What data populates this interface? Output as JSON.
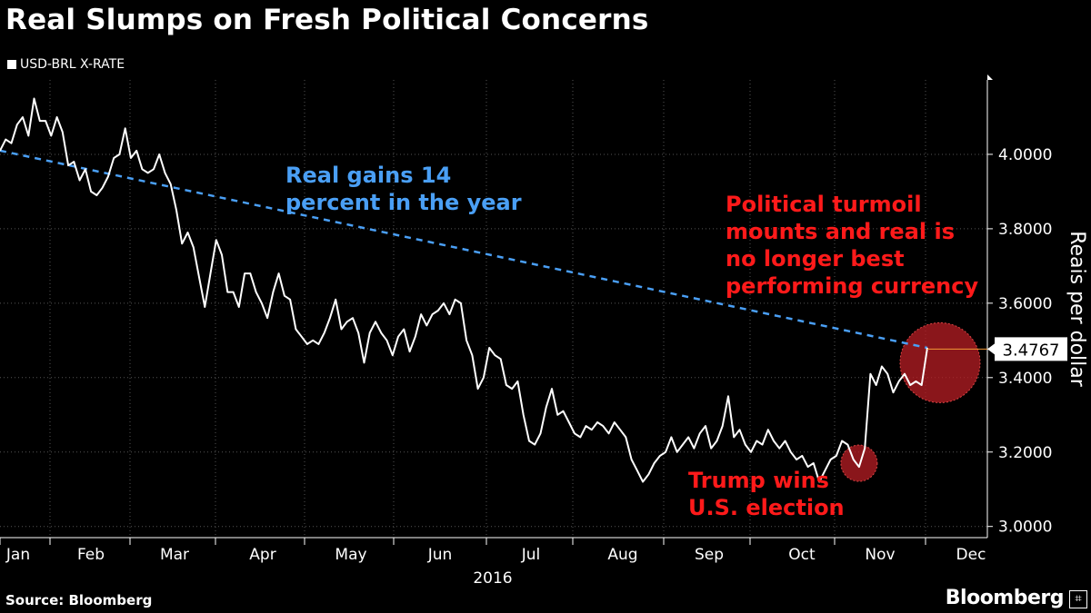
{
  "title": "Real Slumps on Fresh Political Concerns",
  "legend_label": "USD-BRL X-RATE",
  "source": "Source: Bloomberg",
  "brand": "Bloomberg",
  "brand_icon": "bloomberg-terminal-icon",
  "colors": {
    "background": "#000000",
    "line": "#ffffff",
    "trend": "#4a9ff5",
    "annotation_red": "#ff1a1a",
    "highlight": "#b81e24",
    "last_marker": "#f29a38"
  },
  "chart_data": {
    "type": "line",
    "title": "Real Slumps on Fresh Political Concerns",
    "ylabel": "Reais per dollar",
    "xlabel": "2016",
    "ylim": [
      2.97,
      4.2
    ],
    "y_ticks": [
      "4.0000",
      "3.8000",
      "3.6000",
      "3.4000",
      "3.2000",
      "3.0000"
    ],
    "x_tick_labels": [
      "Jan",
      "Feb",
      "Mar",
      "Apr",
      "May",
      "Jun",
      "Jul",
      "Aug",
      "Sep",
      "Oct",
      "Nov",
      "Dec"
    ],
    "x_year_label": "2016",
    "last_value_label": "3.4767",
    "series": [
      {
        "name": "USD-BRL X-RATE",
        "points": [
          [
            0,
            4.01
          ],
          [
            2,
            4.04
          ],
          [
            4,
            4.03
          ],
          [
            6,
            4.08
          ],
          [
            8,
            4.1
          ],
          [
            10,
            4.05
          ],
          [
            12,
            4.15
          ],
          [
            14,
            4.09
          ],
          [
            16,
            4.09
          ],
          [
            18,
            4.05
          ],
          [
            20,
            4.1
          ],
          [
            22,
            4.06
          ],
          [
            24,
            3.97
          ],
          [
            26,
            3.98
          ],
          [
            28,
            3.93
          ],
          [
            30,
            3.96
          ],
          [
            32,
            3.9
          ],
          [
            34,
            3.89
          ],
          [
            36,
            3.91
          ],
          [
            38,
            3.94
          ],
          [
            40,
            3.99
          ],
          [
            42,
            4.0
          ],
          [
            44,
            4.07
          ],
          [
            46,
            3.99
          ],
          [
            48,
            4.01
          ],
          [
            50,
            3.96
          ],
          [
            52,
            3.95
          ],
          [
            54,
            3.96
          ],
          [
            56,
            4.0
          ],
          [
            58,
            3.95
          ],
          [
            60,
            3.92
          ],
          [
            62,
            3.85
          ],
          [
            64,
            3.76
          ],
          [
            66,
            3.79
          ],
          [
            68,
            3.75
          ],
          [
            70,
            3.67
          ],
          [
            72,
            3.59
          ],
          [
            74,
            3.68
          ],
          [
            76,
            3.77
          ],
          [
            78,
            3.73
          ],
          [
            80,
            3.63
          ],
          [
            82,
            3.63
          ],
          [
            84,
            3.59
          ],
          [
            86,
            3.68
          ],
          [
            88,
            3.68
          ],
          [
            90,
            3.63
          ],
          [
            92,
            3.6
          ],
          [
            94,
            3.56
          ],
          [
            96,
            3.63
          ],
          [
            98,
            3.68
          ],
          [
            100,
            3.62
          ],
          [
            102,
            3.61
          ],
          [
            104,
            3.53
          ],
          [
            106,
            3.51
          ],
          [
            108,
            3.49
          ],
          [
            110,
            3.5
          ],
          [
            112,
            3.49
          ],
          [
            114,
            3.52
          ],
          [
            116,
            3.56
          ],
          [
            118,
            3.61
          ],
          [
            120,
            3.53
          ],
          [
            122,
            3.55
          ],
          [
            124,
            3.56
          ],
          [
            126,
            3.52
          ],
          [
            128,
            3.44
          ],
          [
            130,
            3.52
          ],
          [
            132,
            3.55
          ],
          [
            134,
            3.52
          ],
          [
            136,
            3.5
          ],
          [
            138,
            3.46
          ],
          [
            140,
            3.51
          ],
          [
            142,
            3.53
          ],
          [
            144,
            3.47
          ],
          [
            146,
            3.51
          ],
          [
            148,
            3.57
          ],
          [
            150,
            3.54
          ],
          [
            152,
            3.57
          ],
          [
            154,
            3.58
          ],
          [
            156,
            3.6
          ],
          [
            158,
            3.57
          ],
          [
            160,
            3.61
          ],
          [
            162,
            3.6
          ],
          [
            164,
            3.5
          ],
          [
            166,
            3.46
          ],
          [
            168,
            3.37
          ],
          [
            170,
            3.4
          ],
          [
            172,
            3.48
          ],
          [
            174,
            3.46
          ],
          [
            176,
            3.45
          ],
          [
            178,
            3.38
          ],
          [
            180,
            3.37
          ],
          [
            182,
            3.39
          ],
          [
            184,
            3.3
          ],
          [
            186,
            3.23
          ],
          [
            188,
            3.22
          ],
          [
            190,
            3.25
          ],
          [
            192,
            3.32
          ],
          [
            194,
            3.37
          ],
          [
            196,
            3.3
          ],
          [
            198,
            3.31
          ],
          [
            200,
            3.28
          ],
          [
            202,
            3.25
          ],
          [
            204,
            3.24
          ],
          [
            206,
            3.27
          ],
          [
            208,
            3.26
          ],
          [
            210,
            3.28
          ],
          [
            212,
            3.27
          ],
          [
            214,
            3.25
          ],
          [
            216,
            3.28
          ],
          [
            218,
            3.26
          ],
          [
            220,
            3.24
          ],
          [
            222,
            3.18
          ],
          [
            224,
            3.15
          ],
          [
            226,
            3.12
          ],
          [
            228,
            3.14
          ],
          [
            230,
            3.17
          ],
          [
            232,
            3.19
          ],
          [
            234,
            3.2
          ],
          [
            236,
            3.24
          ],
          [
            238,
            3.2
          ],
          [
            240,
            3.22
          ],
          [
            242,
            3.24
          ],
          [
            244,
            3.21
          ],
          [
            246,
            3.25
          ],
          [
            248,
            3.27
          ],
          [
            250,
            3.21
          ],
          [
            252,
            3.23
          ],
          [
            254,
            3.27
          ],
          [
            256,
            3.35
          ],
          [
            258,
            3.24
          ],
          [
            260,
            3.26
          ],
          [
            262,
            3.22
          ],
          [
            264,
            3.2
          ],
          [
            266,
            3.23
          ],
          [
            268,
            3.22
          ],
          [
            270,
            3.26
          ],
          [
            272,
            3.23
          ],
          [
            274,
            3.21
          ],
          [
            276,
            3.23
          ],
          [
            278,
            3.2
          ],
          [
            280,
            3.18
          ],
          [
            282,
            3.19
          ],
          [
            284,
            3.16
          ],
          [
            286,
            3.17
          ],
          [
            288,
            3.12
          ],
          [
            290,
            3.15
          ],
          [
            292,
            3.18
          ],
          [
            294,
            3.19
          ],
          [
            296,
            3.23
          ],
          [
            298,
            3.22
          ],
          [
            300,
            3.18
          ],
          [
            302,
            3.16
          ],
          [
            304,
            3.21
          ],
          [
            306,
            3.41
          ],
          [
            308,
            3.38
          ],
          [
            310,
            3.43
          ],
          [
            312,
            3.41
          ],
          [
            314,
            3.36
          ],
          [
            316,
            3.39
          ],
          [
            318,
            3.41
          ],
          [
            320,
            3.38
          ],
          [
            322,
            3.39
          ],
          [
            324,
            3.38
          ],
          [
            326,
            3.48
          ]
        ]
      }
    ],
    "trend_line": {
      "start": [
        0,
        4.01
      ],
      "end": [
        326,
        3.48
      ]
    },
    "annotations": [
      "Real gains 14\npercent in the year",
      "Political turmoil\nmounts and real is\nno longer best\nperforming currency",
      "Trump wins\nU.S. election"
    ]
  }
}
